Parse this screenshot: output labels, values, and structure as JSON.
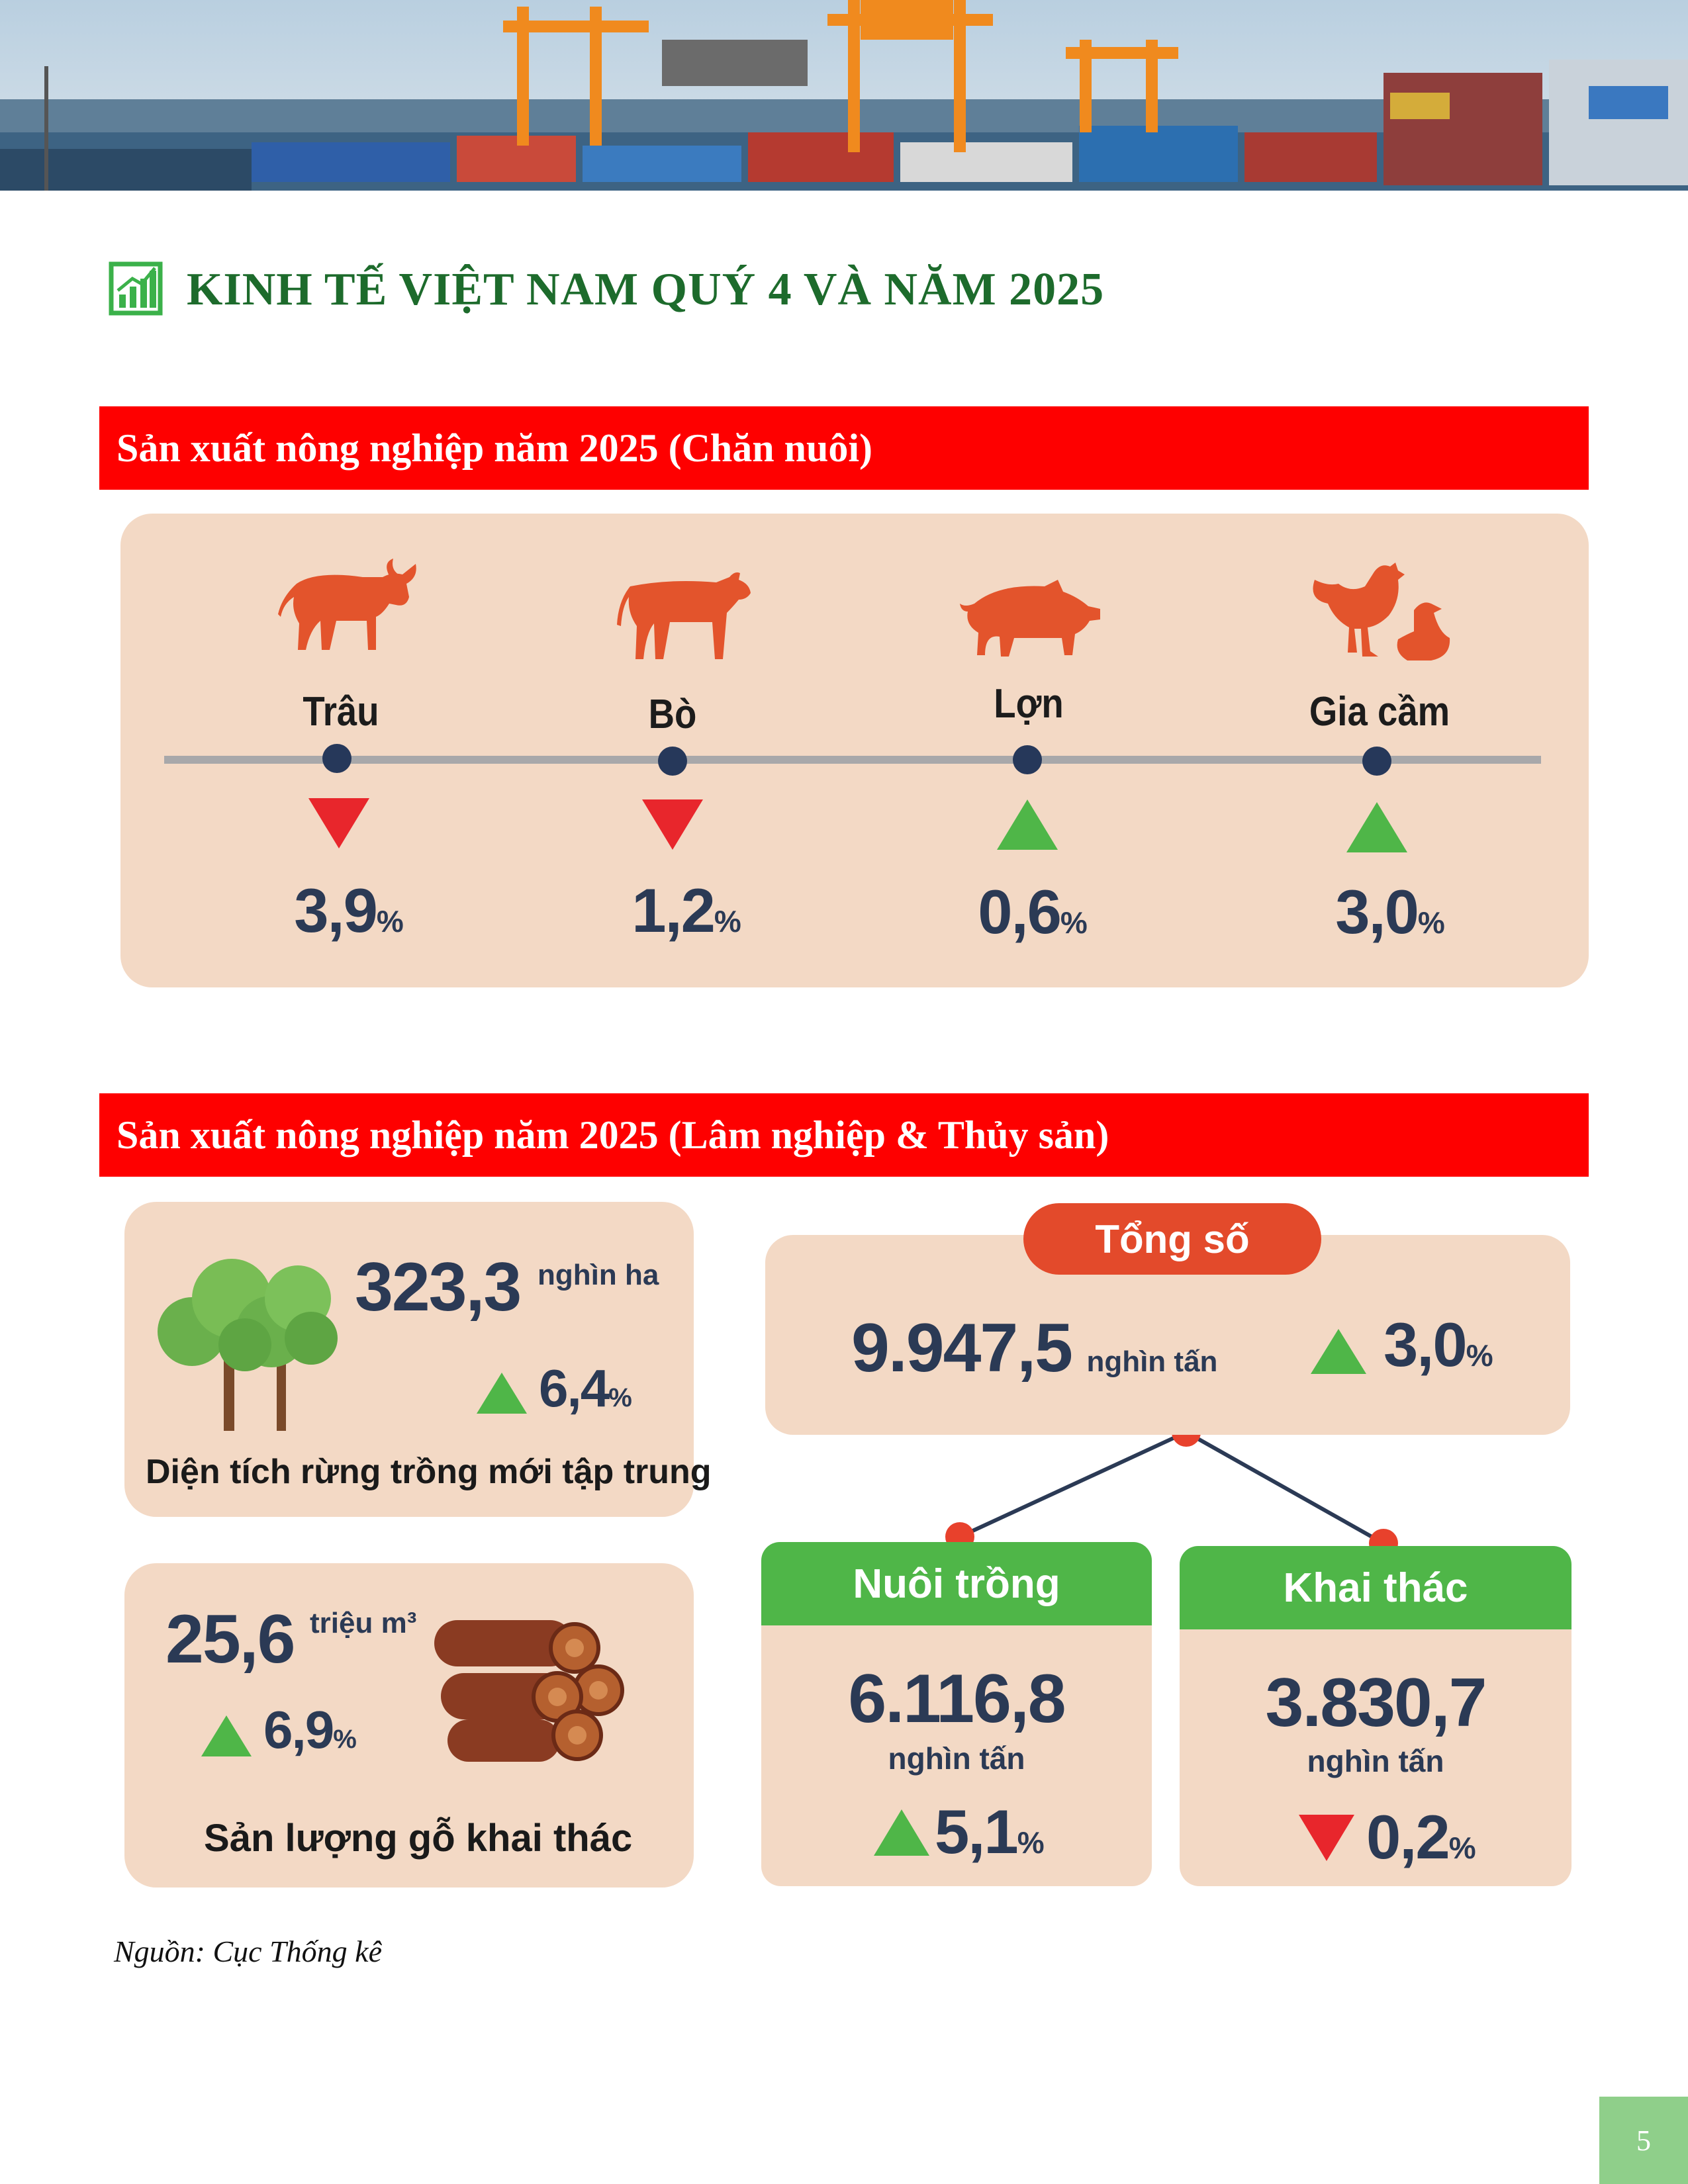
{
  "title": "KINH TẾ VIỆT NAM QUÝ 4 VÀ NĂM 2025",
  "section1": {
    "heading": "Sản xuất nông nghiệp năm 2025 (Chăn nuôi)",
    "items": [
      {
        "label": "Trâu",
        "value": "3,9",
        "unit": "%",
        "trend": "down"
      },
      {
        "label": "Bò",
        "value": "1,2",
        "unit": "%",
        "trend": "down"
      },
      {
        "label": "Lợn",
        "value": "0,6",
        "unit": "%",
        "trend": "up"
      },
      {
        "label": "Gia cầm",
        "value": "3,0",
        "unit": "%",
        "trend": "up"
      }
    ]
  },
  "section2": {
    "heading": "Sản xuất nông nghiệp năm 2025 (Lâm nghiệp & Thủy sản)",
    "forest": {
      "value": "323,3",
      "unit": "nghìn ha",
      "change": "6,4",
      "change_unit": "%",
      "trend": "up",
      "caption": "Diện tích rừng trồng mới tập trung"
    },
    "timber": {
      "value": "25,6",
      "unit": "triệu m³",
      "change": "6,9",
      "change_unit": "%",
      "trend": "up",
      "caption": "Sản lượng gỗ khai thác"
    },
    "fishery": {
      "total_label": "Tổng số",
      "total_value": "9.947,5",
      "total_unit": "nghìn tấn",
      "total_change": "3,0",
      "total_change_unit": "%",
      "total_trend": "up",
      "branches": [
        {
          "label": "Nuôi trồng",
          "value": "6.116,8",
          "unit": "nghìn tấn",
          "change": "5,1",
          "change_unit": "%",
          "trend": "up"
        },
        {
          "label": "Khai thác",
          "value": "3.830,7",
          "unit": "nghìn tấn",
          "change": "0,2",
          "change_unit": "%",
          "trend": "down"
        }
      ]
    }
  },
  "source": "Nguồn: Cục Thống kê",
  "page_number": "5",
  "colors": {
    "accent_red": "#fe0000",
    "heading_green": "#1d6b2c",
    "up_green": "#4fb648",
    "down_red": "#e8262c",
    "panel": "#f3d9c5",
    "animal": "#e3542c"
  }
}
